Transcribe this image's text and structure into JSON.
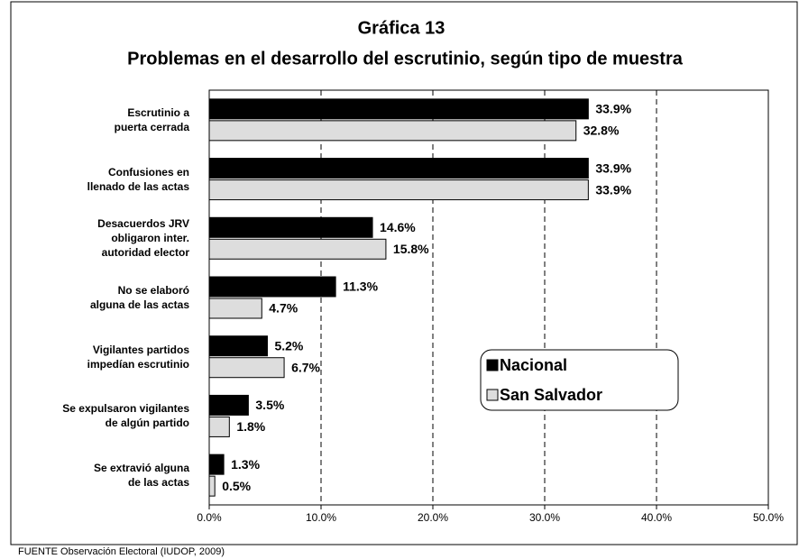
{
  "chart_data": {
    "type": "barh",
    "title": "Gráfica 13",
    "subtitle": "Problemas en el desarrollo del escrutinio, según tipo de muestra",
    "source": "FUENTE Observación Electoral (IUDOP, 2009)",
    "categories": [
      "Escrutinio a\npuerta cerrada",
      "Confusiones en\nllenado de las actas",
      "Desacuerdos JRV\nobligaron inter.\nautoridad elector",
      "No se elaboró\nalguna de las actas",
      "Vigilantes partidos\nimpedían escrutinio",
      "Se expulsaron vigilantes\nde algún partido",
      "Se extravió alguna\nde las actas"
    ],
    "series": [
      {
        "name": "Nacional",
        "color": "#000000",
        "values": [
          33.9,
          33.9,
          14.6,
          11.3,
          5.2,
          3.5,
          1.3
        ],
        "value_labels": [
          "33.9%",
          "33.9%",
          "14.6%",
          "11.3%",
          "5.2%",
          "3.5%",
          "1.3%"
        ]
      },
      {
        "name": "San Salvador",
        "color": "#dddddd",
        "values": [
          32.8,
          33.9,
          15.8,
          4.7,
          6.7,
          1.8,
          0.5
        ],
        "value_labels": [
          "32.8%",
          "33.9%",
          "15.8%",
          "4.7%",
          "6.7%",
          "1.8%",
          "0.5%"
        ]
      }
    ],
    "xlim": [
      0,
      50
    ],
    "xticks": [
      {
        "value": 0,
        "label": "0.0%"
      },
      {
        "value": 10,
        "label": "10.0%"
      },
      {
        "value": 20,
        "label": "20.0%"
      },
      {
        "value": 30,
        "label": "30.0%"
      },
      {
        "value": 40,
        "label": "40.0%"
      },
      {
        "value": 50,
        "label": "50.0%"
      }
    ],
    "grid": true
  }
}
